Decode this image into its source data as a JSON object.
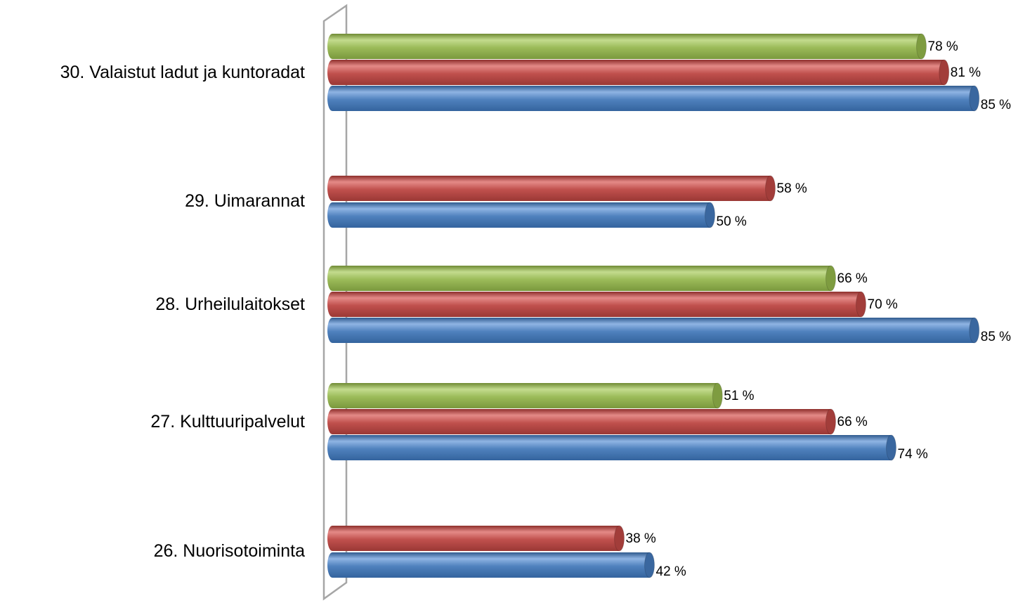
{
  "chart_data": {
    "type": "bar",
    "orientation": "horizontal",
    "style": "3d-cylinder",
    "categories": [
      "30. Valaistut ladut ja kuntoradat",
      "29. Uimarannat",
      "28. Urheilulaitokset",
      "27. Kulttuuripalvelut",
      "26. Nuorisotoiminta"
    ],
    "series": [
      {
        "key": "green",
        "color": "#9BBB59",
        "values": [
          78,
          null,
          66,
          51,
          null
        ]
      },
      {
        "key": "red",
        "color": "#C0504D",
        "values": [
          81,
          58,
          70,
          66,
          38
        ]
      },
      {
        "key": "blue",
        "color": "#4F81BD",
        "values": [
          85,
          50,
          85,
          74,
          42
        ]
      }
    ],
    "value_suffix": " %",
    "xlim": [
      0,
      100
    ],
    "legend": "none",
    "grid": false,
    "title": "",
    "xlabel": "",
    "ylabel": ""
  }
}
